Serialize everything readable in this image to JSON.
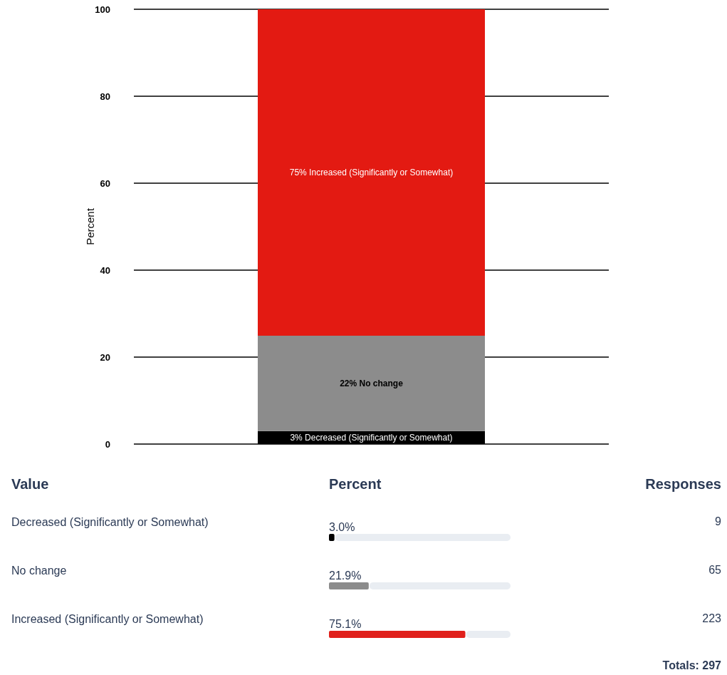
{
  "chart_data": [
    {
      "type": "bar",
      "stacked": true,
      "categories": [
        null
      ],
      "ylabel": "Percent",
      "ylim": [
        0,
        100
      ],
      "yticks": [
        0,
        20,
        40,
        60,
        80,
        100
      ],
      "grid": "y",
      "tick_labels": "y",
      "series": [
        {
          "color": "#000000",
          "values": [
            3.0
          ],
          "value_labels": [
            "3% Decreased (Significantly or Somewhat)"
          ]
        },
        {
          "color": "#8c8c8c",
          "values": [
            21.9
          ],
          "value_labels": [
            "22% No change"
          ]
        },
        {
          "color": "#e31a12",
          "values": [
            75.1
          ],
          "value_labels": [
            "75% Increased (Significantly or Somewhat)"
          ]
        }
      ]
    },
    {
      "type": "bar",
      "orientation": "horizontal",
      "categories": [
        "Decreased (Significantly or Somewhat)",
        "No change",
        "Increased (Significantly or Somewhat)"
      ],
      "values": [
        3.0,
        21.9,
        75.1
      ],
      "colors": [
        "#000000",
        "#8c8c8c",
        "#e0201b"
      ],
      "value_labels": [
        "3.0%",
        "21.9%",
        "75.1%"
      ],
      "xlim": [
        0,
        100
      ],
      "tick_labels": false,
      "ylabel": "Value",
      "xlabel": "Percent",
      "y2label": "Responses",
      "annotations": [
        "9",
        "65",
        "223",
        "Totals: 297"
      ]
    }
  ]
}
